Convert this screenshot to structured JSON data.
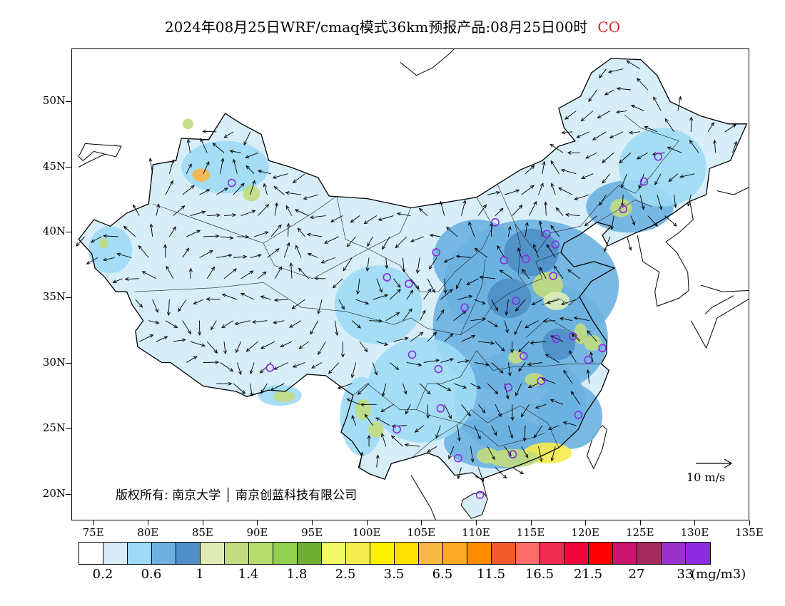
{
  "header": {
    "title": "2024年08月25日WRF/cmaq模式36km预报产品:08月25日00时",
    "pollutant": "CO"
  },
  "map": {
    "lat_labels": [
      "50N",
      "45N",
      "40N",
      "35N",
      "30N",
      "25N",
      "20N"
    ],
    "lat_values": [
      50,
      45,
      40,
      35,
      30,
      25,
      20
    ],
    "lon_labels": [
      "75E",
      "80E",
      "85E",
      "90E",
      "95E",
      "100E",
      "105E",
      "110E",
      "115E",
      "120E",
      "125E",
      "130E",
      "135E"
    ],
    "lon_values": [
      75,
      80,
      85,
      90,
      95,
      100,
      105,
      110,
      115,
      120,
      125,
      130,
      135
    ],
    "extent": {
      "lon_min": 73,
      "lon_max": 135,
      "lat_min": 18,
      "lat_max": 54
    },
    "copyright": "版权所有: 南京大学 │ 南京创蓝科技有限公司",
    "wind_reference": "10 m/s",
    "stations": [
      [
        87.6,
        43.8
      ],
      [
        91.1,
        29.7
      ],
      [
        101.8,
        36.6
      ],
      [
        103.8,
        36.1
      ],
      [
        106.3,
        38.5
      ],
      [
        111.7,
        40.8
      ],
      [
        116.4,
        39.9
      ],
      [
        117.2,
        39.1
      ],
      [
        112.5,
        37.9
      ],
      [
        114.5,
        38.0
      ],
      [
        117.0,
        36.7
      ],
      [
        113.6,
        34.8
      ],
      [
        108.9,
        34.3
      ],
      [
        104.1,
        30.7
      ],
      [
        106.5,
        29.6
      ],
      [
        106.7,
        26.6
      ],
      [
        102.7,
        25.0
      ],
      [
        108.3,
        22.8
      ],
      [
        110.3,
        20.0
      ],
      [
        113.3,
        23.1
      ],
      [
        114.3,
        30.6
      ],
      [
        112.9,
        28.2
      ],
      [
        115.9,
        28.7
      ],
      [
        117.3,
        31.9
      ],
      [
        118.8,
        32.1
      ],
      [
        120.2,
        30.3
      ],
      [
        121.5,
        31.2
      ],
      [
        119.3,
        26.1
      ],
      [
        123.4,
        41.8
      ],
      [
        125.3,
        43.9
      ],
      [
        126.6,
        45.8
      ]
    ]
  },
  "colorbar": {
    "colors": [
      "#ffffff",
      "#d7eef9",
      "#9fdaf4",
      "#6cb1e0",
      "#4f8fc7",
      "#e0ebb8",
      "#c2db7e",
      "#b4db6b",
      "#92cf4e",
      "#6fae32",
      "#f3fb68",
      "#f6eb4e",
      "#fff200",
      "#ffe000",
      "#f8b645",
      "#fba824",
      "#ff8c00",
      "#f15a2b",
      "#ff6b6b",
      "#f02a50",
      "#f0053d",
      "#ff0000",
      "#c8146c",
      "#a62a5a",
      "#9932cc",
      "#8b2be2"
    ],
    "labels": [
      "0.2",
      "0.6",
      "1",
      "1.4",
      "1.8",
      "2.5",
      "3.5",
      "6.5",
      "11.5",
      "16.5",
      "21.5",
      "27",
      "33"
    ],
    "unit": "(mg/m3)"
  }
}
